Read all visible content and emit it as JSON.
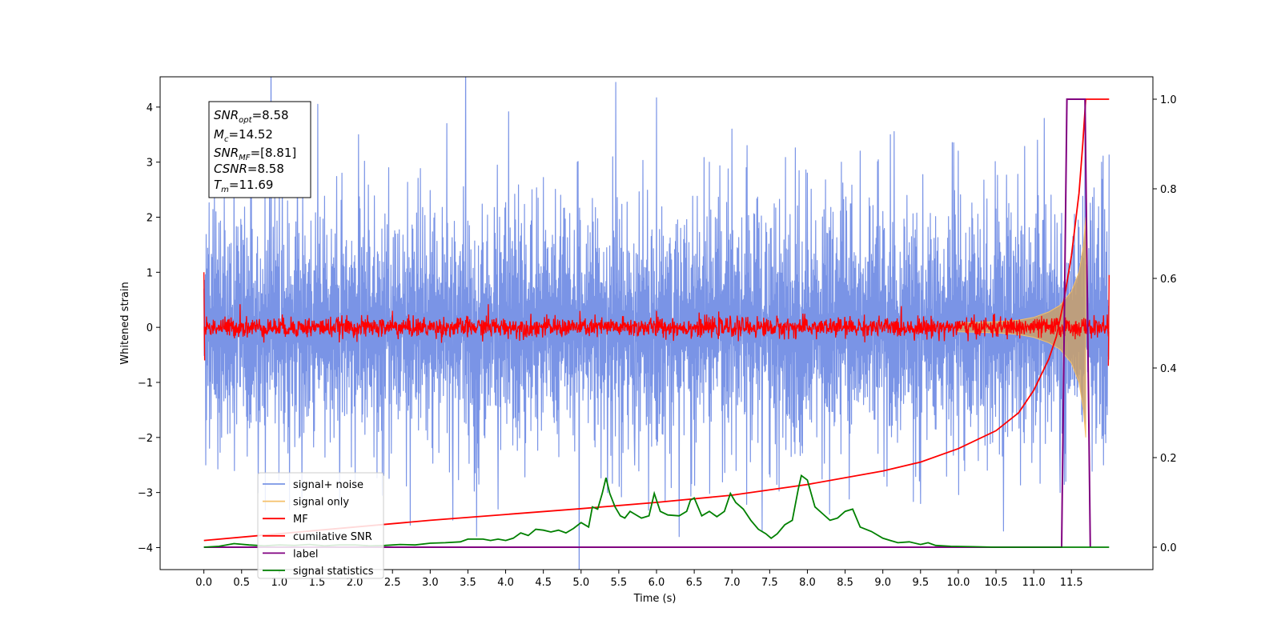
{
  "chart_data": {
    "type": "line",
    "xlabel": "Time (s)",
    "ylabel_left": "Whitened strain",
    "ylabel_right": "",
    "xlim": [
      -0.58,
      12.58
    ],
    "ylim_left": [
      -4.4,
      4.55
    ],
    "ylim_right": [
      -0.05,
      1.05
    ],
    "x_ticks": [
      "0.0",
      "0.5",
      "1.0",
      "1.5",
      "2.0",
      "2.5",
      "3.0",
      "3.5",
      "4.0",
      "4.5",
      "5.0",
      "5.5",
      "6.0",
      "6.5",
      "7.0",
      "7.5",
      "8.0",
      "8.5",
      "9.0",
      "9.5",
      "10.0",
      "10.5",
      "11.0",
      "11.5"
    ],
    "y_ticks_left": [
      "4",
      "3",
      "2",
      "1",
      "0",
      "−1",
      "−2",
      "−3",
      "−4"
    ],
    "y_ticks_right": [
      "1.0",
      "0.8",
      "0.6",
      "0.4",
      "0.2",
      "0.0"
    ],
    "grid": false,
    "legend_position": "lower-left",
    "annotation": {
      "snr_opt": {
        "base": "SNR",
        "sub": "opt",
        "value": "=8.58"
      },
      "mc": {
        "base": "M",
        "sub": "c",
        "value": "=14.52"
      },
      "snr_mf": {
        "base": "SNR",
        "sub": "MF",
        "value": "=[8.81]"
      },
      "csnr": {
        "base": "CSNR",
        "sub": "",
        "value": "=8.58"
      },
      "tm": {
        "base": "T",
        "sub": "m",
        "value": "=11.69"
      }
    },
    "series": [
      {
        "name": "signal+ noise",
        "axis": "left",
        "color": "#7a94e6",
        "style": "dense-noise",
        "x_range": [
          0.0,
          12.0
        ],
        "typical_amplitude": [
          -2.0,
          2.1
        ],
        "peak_values": [
          {
            "x": 0.14,
            "y": 2.5
          },
          {
            "x": 0.4,
            "y": 3.1
          },
          {
            "x": 0.72,
            "y": -3.0
          },
          {
            "x": 1.0,
            "y": 2.9
          },
          {
            "x": 1.3,
            "y": -3.1
          },
          {
            "x": 1.51,
            "y": 4.05
          },
          {
            "x": 1.8,
            "y": -3.2
          },
          {
            "x": 2.05,
            "y": 3.5
          },
          {
            "x": 2.45,
            "y": 2.9
          },
          {
            "x": 3.22,
            "y": 3.7
          },
          {
            "x": 3.3,
            "y": -3.5
          },
          {
            "x": 3.9,
            "y": -3.3
          },
          {
            "x": 4.35,
            "y": 2.5
          },
          {
            "x": 4.95,
            "y": 3.0
          },
          {
            "x": 5.35,
            "y": -3.0
          },
          {
            "x": 5.71,
            "y": -2.5
          },
          {
            "x": 6.0,
            "y": 4.17
          },
          {
            "x": 6.3,
            "y": -3.8
          },
          {
            "x": 6.7,
            "y": 3.0
          },
          {
            "x": 7.0,
            "y": 3.6
          },
          {
            "x": 7.2,
            "y": 3.3
          },
          {
            "x": 7.4,
            "y": -3.7
          },
          {
            "x": 8.0,
            "y": 2.8
          },
          {
            "x": 8.45,
            "y": 3.0
          },
          {
            "x": 8.7,
            "y": 3.2
          },
          {
            "x": 9.1,
            "y": 3.5
          },
          {
            "x": 9.5,
            "y": -3.2
          },
          {
            "x": 10.0,
            "y": 3.2
          },
          {
            "x": 10.6,
            "y": -3.7
          },
          {
            "x": 11.05,
            "y": 3.4
          },
          {
            "x": 11.35,
            "y": -3.0
          },
          {
            "x": 11.68,
            "y": 4.05
          },
          {
            "x": 11.9,
            "y": 3.0
          }
        ]
      },
      {
        "name": "signal only",
        "axis": "left",
        "color": "#f5c06a",
        "style": "chirp",
        "points": [
          [
            10.0,
            0.08
          ],
          [
            10.5,
            0.1
          ],
          [
            10.8,
            0.13
          ],
          [
            11.0,
            0.18
          ],
          [
            11.2,
            0.28
          ],
          [
            11.35,
            0.4
          ],
          [
            11.5,
            0.65
          ],
          [
            11.6,
            1.0
          ],
          [
            11.66,
            1.5
          ],
          [
            11.69,
            2.0
          ]
        ]
      },
      {
        "name": "MF",
        "axis": "left",
        "color": "#ff0000",
        "style": "dense-noise",
        "x_range": [
          0.0,
          12.0
        ],
        "typical_amplitude": [
          -0.15,
          0.15
        ],
        "endpoints": [
          [
            0.0,
            1.0
          ],
          [
            0.01,
            -0.6
          ],
          [
            11.99,
            -0.7
          ],
          [
            12.0,
            0.95
          ]
        ],
        "peak_values": [
          {
            "x": 0.48,
            "y": 0.42
          },
          {
            "x": 3.77,
            "y": 0.42
          },
          {
            "x": 2.5,
            "y": 0.3
          },
          {
            "x": 6.0,
            "y": 0.3
          }
        ]
      },
      {
        "name": "cumilative SNR",
        "axis": "right",
        "color": "#ff0000",
        "style": "line",
        "points": [
          [
            0.0,
            0.015
          ],
          [
            1.0,
            0.03
          ],
          [
            2.0,
            0.045
          ],
          [
            3.0,
            0.06
          ],
          [
            4.0,
            0.073
          ],
          [
            5.0,
            0.086
          ],
          [
            6.0,
            0.1
          ],
          [
            7.0,
            0.116
          ],
          [
            8.0,
            0.14
          ],
          [
            9.0,
            0.17
          ],
          [
            9.5,
            0.19
          ],
          [
            10.0,
            0.22
          ],
          [
            10.5,
            0.26
          ],
          [
            10.8,
            0.3
          ],
          [
            11.0,
            0.35
          ],
          [
            11.2,
            0.42
          ],
          [
            11.3,
            0.47
          ],
          [
            11.4,
            0.55
          ],
          [
            11.5,
            0.65
          ],
          [
            11.6,
            0.79
          ],
          [
            11.65,
            0.9
          ],
          [
            11.69,
            1.0
          ],
          [
            12.0,
            1.0
          ]
        ]
      },
      {
        "name": "label",
        "axis": "right",
        "color": "#800080",
        "style": "line",
        "points": [
          [
            0.0,
            0.0
          ],
          [
            11.37,
            0.0
          ],
          [
            11.44,
            1.0
          ],
          [
            11.68,
            1.0
          ],
          [
            11.75,
            0.0
          ]
        ]
      },
      {
        "name": "signal statistics",
        "axis": "right",
        "color": "#008000",
        "style": "line",
        "points": [
          [
            0.0,
            0.0
          ],
          [
            0.2,
            0.002
          ],
          [
            0.4,
            0.008
          ],
          [
            0.6,
            0.005
          ],
          [
            0.8,
            0.003
          ],
          [
            1.0,
            0.005
          ],
          [
            1.2,
            0.004
          ],
          [
            1.4,
            0.006
          ],
          [
            1.6,
            0.003
          ],
          [
            1.8,
            0.005
          ],
          [
            2.0,
            0.005
          ],
          [
            2.2,
            0.003
          ],
          [
            2.4,
            0.004
          ],
          [
            2.6,
            0.006
          ],
          [
            2.8,
            0.005
          ],
          [
            3.0,
            0.009
          ],
          [
            3.2,
            0.01
          ],
          [
            3.4,
            0.012
          ],
          [
            3.5,
            0.018
          ],
          [
            3.7,
            0.018
          ],
          [
            3.8,
            0.015
          ],
          [
            3.9,
            0.018
          ],
          [
            4.0,
            0.015
          ],
          [
            4.1,
            0.02
          ],
          [
            4.2,
            0.032
          ],
          [
            4.3,
            0.026
          ],
          [
            4.4,
            0.04
          ],
          [
            4.5,
            0.038
          ],
          [
            4.6,
            0.034
          ],
          [
            4.7,
            0.038
          ],
          [
            4.8,
            0.032
          ],
          [
            4.9,
            0.042
          ],
          [
            5.0,
            0.055
          ],
          [
            5.1,
            0.045
          ],
          [
            5.15,
            0.09
          ],
          [
            5.22,
            0.085
          ],
          [
            5.28,
            0.12
          ],
          [
            5.33,
            0.155
          ],
          [
            5.38,
            0.12
          ],
          [
            5.45,
            0.09
          ],
          [
            5.52,
            0.07
          ],
          [
            5.58,
            0.065
          ],
          [
            5.65,
            0.08
          ],
          [
            5.7,
            0.075
          ],
          [
            5.8,
            0.065
          ],
          [
            5.9,
            0.07
          ],
          [
            5.97,
            0.12
          ],
          [
            6.05,
            0.08
          ],
          [
            6.15,
            0.072
          ],
          [
            6.3,
            0.07
          ],
          [
            6.4,
            0.08
          ],
          [
            6.45,
            0.105
          ],
          [
            6.5,
            0.11
          ],
          [
            6.55,
            0.09
          ],
          [
            6.6,
            0.07
          ],
          [
            6.7,
            0.08
          ],
          [
            6.8,
            0.068
          ],
          [
            6.9,
            0.08
          ],
          [
            6.98,
            0.12
          ],
          [
            7.05,
            0.1
          ],
          [
            7.15,
            0.085
          ],
          [
            7.25,
            0.06
          ],
          [
            7.35,
            0.04
          ],
          [
            7.45,
            0.03
          ],
          [
            7.52,
            0.02
          ],
          [
            7.6,
            0.03
          ],
          [
            7.7,
            0.05
          ],
          [
            7.8,
            0.06
          ],
          [
            7.88,
            0.13
          ],
          [
            7.92,
            0.16
          ],
          [
            8.0,
            0.15
          ],
          [
            8.1,
            0.09
          ],
          [
            8.2,
            0.075
          ],
          [
            8.3,
            0.06
          ],
          [
            8.4,
            0.065
          ],
          [
            8.5,
            0.08
          ],
          [
            8.6,
            0.085
          ],
          [
            8.7,
            0.045
          ],
          [
            8.85,
            0.035
          ],
          [
            9.0,
            0.02
          ],
          [
            9.1,
            0.015
          ],
          [
            9.2,
            0.01
          ],
          [
            9.35,
            0.012
          ],
          [
            9.5,
            0.006
          ],
          [
            9.6,
            0.01
          ],
          [
            9.7,
            0.004
          ],
          [
            9.9,
            0.002
          ],
          [
            10.2,
            0.001
          ],
          [
            10.5,
            0.0
          ],
          [
            12.0,
            0.0
          ]
        ]
      }
    ]
  }
}
